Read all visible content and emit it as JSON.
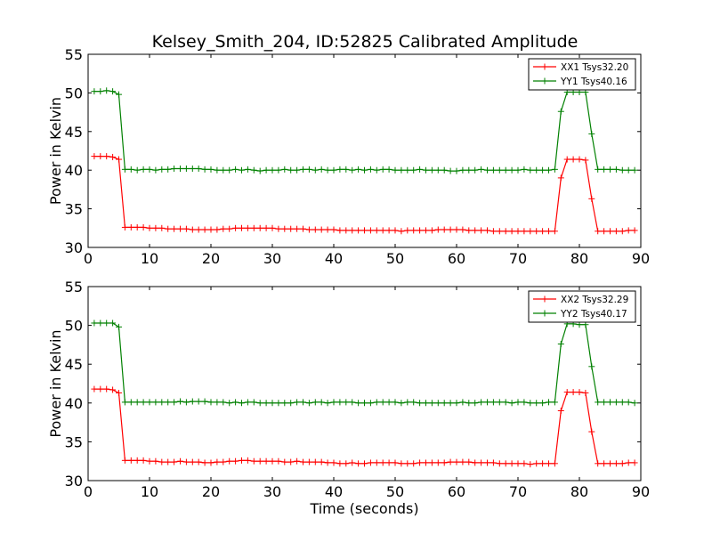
{
  "title": "Kelsey_Smith_204, ID:52825 Calibrated Amplitude",
  "chart_data": [
    {
      "type": "line",
      "title": "Kelsey_Smith_204, ID:52825 Calibrated Amplitude",
      "xlabel": "",
      "ylabel": "Power in Kelvin",
      "xlim": [
        0,
        90
      ],
      "ylim": [
        30,
        55
      ],
      "xticks": [
        "0",
        "10",
        "20",
        "30",
        "40",
        "50",
        "60",
        "70",
        "80",
        "90"
      ],
      "yticks": [
        "30",
        "35",
        "40",
        "45",
        "50",
        "55"
      ],
      "legend_position": "top-right",
      "grid": false,
      "series": [
        {
          "name": "XX1 Tsys32.20",
          "color": "#ff0000",
          "x": [
            1,
            2,
            3,
            4,
            5,
            6,
            7,
            8,
            9,
            10,
            11,
            12,
            13,
            14,
            15,
            16,
            17,
            18,
            19,
            20,
            21,
            22,
            23,
            24,
            25,
            26,
            27,
            28,
            29,
            30,
            31,
            32,
            33,
            34,
            35,
            36,
            37,
            38,
            39,
            40,
            41,
            42,
            43,
            44,
            45,
            46,
            47,
            48,
            49,
            50,
            51,
            52,
            53,
            54,
            55,
            56,
            57,
            58,
            59,
            60,
            61,
            62,
            63,
            64,
            65,
            66,
            67,
            68,
            69,
            70,
            71,
            72,
            73,
            74,
            75,
            76,
            77,
            78,
            79,
            80,
            81,
            82,
            83,
            84,
            85,
            86,
            87,
            88,
            89
          ],
          "y": [
            41.8,
            41.8,
            41.8,
            41.7,
            41.4,
            32.6,
            32.6,
            32.6,
            32.6,
            32.5,
            32.5,
            32.5,
            32.4,
            32.4,
            32.4,
            32.4,
            32.3,
            32.3,
            32.3,
            32.3,
            32.3,
            32.4,
            32.4,
            32.5,
            32.5,
            32.5,
            32.5,
            32.5,
            32.5,
            32.5,
            32.4,
            32.4,
            32.4,
            32.4,
            32.4,
            32.3,
            32.3,
            32.3,
            32.3,
            32.3,
            32.2,
            32.2,
            32.2,
            32.2,
            32.2,
            32.2,
            32.2,
            32.2,
            32.2,
            32.2,
            32.1,
            32.2,
            32.2,
            32.2,
            32.2,
            32.2,
            32.3,
            32.3,
            32.3,
            32.3,
            32.3,
            32.2,
            32.2,
            32.2,
            32.2,
            32.1,
            32.1,
            32.1,
            32.1,
            32.1,
            32.1,
            32.1,
            32.1,
            32.1,
            32.1,
            32.1,
            39.0,
            41.4,
            41.4,
            41.4,
            41.3,
            36.3,
            32.1,
            32.1,
            32.1,
            32.1,
            32.1,
            32.2,
            32.2
          ]
        },
        {
          "name": "YY1 Tsys40.16",
          "color": "#008000",
          "x": [
            1,
            2,
            3,
            4,
            5,
            6,
            7,
            8,
            9,
            10,
            11,
            12,
            13,
            14,
            15,
            16,
            17,
            18,
            19,
            20,
            21,
            22,
            23,
            24,
            25,
            26,
            27,
            28,
            29,
            30,
            31,
            32,
            33,
            34,
            35,
            36,
            37,
            38,
            39,
            40,
            41,
            42,
            43,
            44,
            45,
            46,
            47,
            48,
            49,
            50,
            51,
            52,
            53,
            54,
            55,
            56,
            57,
            58,
            59,
            60,
            61,
            62,
            63,
            64,
            65,
            66,
            67,
            68,
            69,
            70,
            71,
            72,
            73,
            74,
            75,
            76,
            77,
            78,
            79,
            80,
            81,
            82,
            83,
            84,
            85,
            86,
            87,
            88,
            89
          ],
          "y": [
            50.2,
            50.2,
            50.3,
            50.2,
            49.8,
            40.1,
            40.1,
            40.0,
            40.1,
            40.1,
            40.0,
            40.1,
            40.1,
            40.2,
            40.2,
            40.2,
            40.2,
            40.2,
            40.1,
            40.1,
            40.0,
            40.0,
            40.0,
            40.1,
            40.0,
            40.1,
            40.0,
            39.9,
            40.0,
            40.0,
            40.0,
            40.1,
            40.0,
            40.0,
            40.1,
            40.1,
            40.0,
            40.1,
            40.0,
            40.0,
            40.1,
            40.1,
            40.0,
            40.1,
            40.0,
            40.1,
            40.0,
            40.1,
            40.1,
            40.0,
            40.0,
            40.0,
            40.0,
            40.1,
            40.0,
            40.0,
            40.0,
            40.0,
            39.9,
            39.9,
            40.0,
            40.0,
            40.0,
            40.1,
            40.0,
            40.0,
            40.0,
            40.0,
            40.0,
            40.0,
            40.1,
            40.0,
            40.0,
            40.0,
            40.0,
            40.1,
            47.6,
            50.1,
            50.1,
            50.1,
            50.1,
            44.7,
            40.1,
            40.1,
            40.1,
            40.1,
            40.0,
            40.0,
            40.0
          ]
        }
      ]
    },
    {
      "type": "line",
      "title": "",
      "xlabel": "Time (seconds)",
      "ylabel": "Power in Kelvin",
      "xlim": [
        0,
        90
      ],
      "ylim": [
        30,
        55
      ],
      "xticks": [
        "0",
        "10",
        "20",
        "30",
        "40",
        "50",
        "60",
        "70",
        "80",
        "90"
      ],
      "yticks": [
        "30",
        "35",
        "40",
        "45",
        "50",
        "55"
      ],
      "legend_position": "top-right",
      "grid": false,
      "series": [
        {
          "name": "XX2 Tsys32.29",
          "color": "#ff0000",
          "x": [
            1,
            2,
            3,
            4,
            5,
            6,
            7,
            8,
            9,
            10,
            11,
            12,
            13,
            14,
            15,
            16,
            17,
            18,
            19,
            20,
            21,
            22,
            23,
            24,
            25,
            26,
            27,
            28,
            29,
            30,
            31,
            32,
            33,
            34,
            35,
            36,
            37,
            38,
            39,
            40,
            41,
            42,
            43,
            44,
            45,
            46,
            47,
            48,
            49,
            50,
            51,
            52,
            53,
            54,
            55,
            56,
            57,
            58,
            59,
            60,
            61,
            62,
            63,
            64,
            65,
            66,
            67,
            68,
            69,
            70,
            71,
            72,
            73,
            74,
            75,
            76,
            77,
            78,
            79,
            80,
            81,
            82,
            83,
            84,
            85,
            86,
            87,
            88,
            89
          ],
          "y": [
            41.8,
            41.8,
            41.8,
            41.7,
            41.3,
            32.6,
            32.6,
            32.6,
            32.6,
            32.5,
            32.5,
            32.4,
            32.4,
            32.4,
            32.5,
            32.4,
            32.4,
            32.4,
            32.3,
            32.3,
            32.4,
            32.4,
            32.5,
            32.5,
            32.6,
            32.6,
            32.5,
            32.5,
            32.5,
            32.5,
            32.5,
            32.4,
            32.4,
            32.5,
            32.4,
            32.4,
            32.4,
            32.4,
            32.3,
            32.3,
            32.2,
            32.2,
            32.3,
            32.2,
            32.2,
            32.3,
            32.3,
            32.3,
            32.3,
            32.3,
            32.2,
            32.2,
            32.2,
            32.3,
            32.3,
            32.3,
            32.3,
            32.3,
            32.4,
            32.4,
            32.4,
            32.4,
            32.3,
            32.3,
            32.3,
            32.3,
            32.2,
            32.2,
            32.2,
            32.2,
            32.2,
            32.1,
            32.2,
            32.2,
            32.2,
            32.2,
            39.0,
            41.4,
            41.4,
            41.4,
            41.3,
            36.3,
            32.2,
            32.2,
            32.2,
            32.2,
            32.2,
            32.3,
            32.3
          ]
        },
        {
          "name": "YY2 Tsys40.17",
          "color": "#008000",
          "x": [
            1,
            2,
            3,
            4,
            5,
            6,
            7,
            8,
            9,
            10,
            11,
            12,
            13,
            14,
            15,
            16,
            17,
            18,
            19,
            20,
            21,
            22,
            23,
            24,
            25,
            26,
            27,
            28,
            29,
            30,
            31,
            32,
            33,
            34,
            35,
            36,
            37,
            38,
            39,
            40,
            41,
            42,
            43,
            44,
            45,
            46,
            47,
            48,
            49,
            50,
            51,
            52,
            53,
            54,
            55,
            56,
            57,
            58,
            59,
            60,
            61,
            62,
            63,
            64,
            65,
            66,
            67,
            68,
            69,
            70,
            71,
            72,
            73,
            74,
            75,
            76,
            77,
            78,
            79,
            80,
            81,
            82,
            83,
            84,
            85,
            86,
            87,
            88,
            89
          ],
          "y": [
            50.3,
            50.3,
            50.3,
            50.3,
            49.8,
            40.1,
            40.1,
            40.1,
            40.1,
            40.1,
            40.1,
            40.1,
            40.1,
            40.1,
            40.2,
            40.1,
            40.2,
            40.2,
            40.2,
            40.1,
            40.1,
            40.1,
            40.0,
            40.1,
            40.0,
            40.1,
            40.1,
            40.0,
            40.0,
            40.0,
            40.0,
            40.0,
            40.0,
            40.1,
            40.1,
            40.0,
            40.1,
            40.1,
            40.0,
            40.1,
            40.1,
            40.1,
            40.1,
            40.0,
            40.0,
            40.0,
            40.1,
            40.1,
            40.1,
            40.1,
            40.0,
            40.1,
            40.1,
            40.0,
            40.0,
            40.0,
            40.0,
            40.0,
            40.0,
            40.0,
            40.1,
            40.0,
            40.0,
            40.1,
            40.1,
            40.1,
            40.1,
            40.1,
            40.0,
            40.1,
            40.1,
            40.0,
            40.0,
            40.0,
            40.1,
            40.1,
            47.6,
            50.2,
            50.2,
            50.1,
            50.1,
            44.7,
            40.1,
            40.1,
            40.1,
            40.1,
            40.1,
            40.1,
            40.0
          ]
        }
      ]
    }
  ]
}
